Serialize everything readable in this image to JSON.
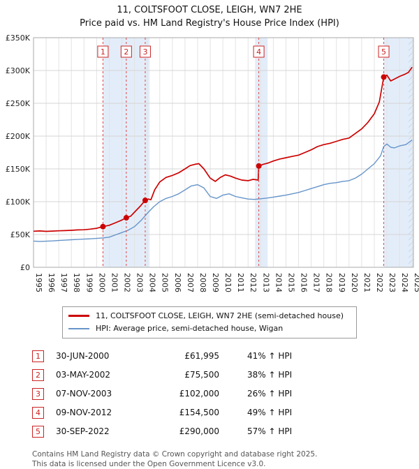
{
  "title": {
    "line1": "11, COLTSFOOT CLOSE, LEIGH, WN7 2HE",
    "line2": "Price paid vs. HM Land Registry's House Price Index (HPI)"
  },
  "chart_data": {
    "type": "line",
    "x_axis": {
      "range": [
        1995,
        2025.1
      ],
      "ticks": [
        1995,
        1996,
        1997,
        1998,
        1999,
        2000,
        2001,
        2002,
        2003,
        2004,
        2005,
        2006,
        2007,
        2008,
        2009,
        2010,
        2011,
        2012,
        2013,
        2014,
        2015,
        2016,
        2017,
        2018,
        2019,
        2020,
        2021,
        2022,
        2023,
        2024,
        2025
      ]
    },
    "y_axis": {
      "range_k": [
        0,
        350
      ],
      "ticks": [
        {
          "value": 0,
          "label": "£0"
        },
        {
          "value": 50,
          "label": "£50K"
        },
        {
          "value": 100,
          "label": "£100K"
        },
        {
          "value": 150,
          "label": "£150K"
        },
        {
          "value": 200,
          "label": "£200K"
        },
        {
          "value": 250,
          "label": "£250K"
        },
        {
          "value": 300,
          "label": "£300K"
        },
        {
          "value": 350,
          "label": "£350K"
        }
      ]
    },
    "colors": {
      "property": "#cc0000",
      "hpi": "#6694c9",
      "band": "#e3edf9",
      "grid": "#d4d4d4",
      "year_grid": "#e3e3e3",
      "sale_line": "#dd4444",
      "marker_box": "#cc2222",
      "border": "#aaaaaa"
    },
    "bands": [
      [
        2000.5,
        2004.2
      ],
      [
        2012.55,
        2013.55
      ],
      [
        2022.75,
        2025.1
      ]
    ],
    "hatch_band": [
      2024.72,
      2025.1
    ],
    "series": [
      {
        "name": "11, COLTSFOOT CLOSE, LEIGH, WN7 2HE (semi-detached house)",
        "color": "#cc0000",
        "points": [
          [
            1995,
            55
          ],
          [
            1995.5,
            55.4
          ],
          [
            1996,
            54.8
          ],
          [
            1996.5,
            55.2
          ],
          [
            1997,
            55.6
          ],
          [
            1997.5,
            56
          ],
          [
            1998,
            56.4
          ],
          [
            1998.5,
            57
          ],
          [
            1999,
            57.2
          ],
          [
            1999.5,
            58.2
          ],
          [
            2000,
            59.5
          ],
          [
            2000.5,
            61.995
          ],
          [
            2001,
            64
          ],
          [
            2001.5,
            68
          ],
          [
            2002,
            72
          ],
          [
            2002.35,
            75.5
          ],
          [
            2002.7,
            78
          ],
          [
            2003,
            84
          ],
          [
            2003.5,
            94
          ],
          [
            2003.85,
            102
          ],
          [
            2004.1,
            104
          ],
          [
            2004.3,
            103
          ],
          [
            2004.6,
            118
          ],
          [
            2005,
            130
          ],
          [
            2005.5,
            137
          ],
          [
            2006,
            140
          ],
          [
            2006.5,
            144
          ],
          [
            2007,
            150
          ],
          [
            2007.4,
            155
          ],
          [
            2007.8,
            157
          ],
          [
            2008.1,
            158
          ],
          [
            2008.5,
            150
          ],
          [
            2009,
            136
          ],
          [
            2009.4,
            131
          ],
          [
            2009.8,
            137
          ],
          [
            2010.2,
            141
          ],
          [
            2010.6,
            139
          ],
          [
            2011,
            136
          ],
          [
            2011.5,
            133
          ],
          [
            2012,
            132
          ],
          [
            2012.4,
            134
          ],
          [
            2012.8,
            133
          ],
          [
            2012.85,
            154.5
          ],
          [
            2013.2,
            157
          ],
          [
            2013.6,
            159
          ],
          [
            2014,
            162
          ],
          [
            2014.5,
            165
          ],
          [
            2015,
            167
          ],
          [
            2015.5,
            169
          ],
          [
            2016,
            171
          ],
          [
            2016.5,
            175
          ],
          [
            2017,
            179
          ],
          [
            2017.5,
            184
          ],
          [
            2018,
            187
          ],
          [
            2018.5,
            189
          ],
          [
            2019,
            192
          ],
          [
            2019.5,
            195
          ],
          [
            2020,
            197
          ],
          [
            2020.5,
            204
          ],
          [
            2021,
            211
          ],
          [
            2021.5,
            221
          ],
          [
            2022,
            234
          ],
          [
            2022.4,
            252
          ],
          [
            2022.75,
            290
          ],
          [
            2023,
            293
          ],
          [
            2023.3,
            284
          ],
          [
            2023.6,
            287
          ],
          [
            2024,
            291
          ],
          [
            2024.4,
            294
          ],
          [
            2024.7,
            297
          ],
          [
            2025,
            305
          ]
        ]
      },
      {
        "name": "HPI: Average price, semi-detached house, Wigan",
        "color": "#6694c9",
        "points": [
          [
            1995,
            40
          ],
          [
            1995.5,
            39.5
          ],
          [
            1996,
            39.8
          ],
          [
            1996.5,
            40.2
          ],
          [
            1997,
            40.8
          ],
          [
            1997.5,
            41.4
          ],
          [
            1998,
            42
          ],
          [
            1998.5,
            42.4
          ],
          [
            1999,
            43
          ],
          [
            1999.5,
            43.4
          ],
          [
            2000,
            44
          ],
          [
            2000.5,
            44.8
          ],
          [
            2001,
            46
          ],
          [
            2001.5,
            49.5
          ],
          [
            2002,
            53
          ],
          [
            2002.5,
            56.5
          ],
          [
            2003,
            62
          ],
          [
            2003.5,
            71
          ],
          [
            2004,
            82
          ],
          [
            2004.5,
            92
          ],
          [
            2005,
            100
          ],
          [
            2005.5,
            105
          ],
          [
            2006,
            108
          ],
          [
            2006.5,
            112
          ],
          [
            2007,
            118
          ],
          [
            2007.5,
            124
          ],
          [
            2008,
            126
          ],
          [
            2008.5,
            121
          ],
          [
            2009,
            108
          ],
          [
            2009.5,
            105
          ],
          [
            2010,
            110
          ],
          [
            2010.5,
            112
          ],
          [
            2011,
            108
          ],
          [
            2011.5,
            106
          ],
          [
            2012,
            104
          ],
          [
            2012.5,
            103.5
          ],
          [
            2013,
            104.5
          ],
          [
            2013.5,
            105.5
          ],
          [
            2014,
            107
          ],
          [
            2014.5,
            108.5
          ],
          [
            2015,
            110
          ],
          [
            2015.5,
            112
          ],
          [
            2016,
            114
          ],
          [
            2016.5,
            117
          ],
          [
            2017,
            120
          ],
          [
            2017.5,
            123
          ],
          [
            2018,
            126
          ],
          [
            2018.5,
            128
          ],
          [
            2019,
            129
          ],
          [
            2019.5,
            131
          ],
          [
            2020,
            132
          ],
          [
            2020.5,
            136
          ],
          [
            2021,
            142
          ],
          [
            2021.5,
            150
          ],
          [
            2022,
            158
          ],
          [
            2022.5,
            170
          ],
          [
            2022.75,
            184
          ],
          [
            2023,
            188
          ],
          [
            2023.3,
            183
          ],
          [
            2023.6,
            182
          ],
          [
            2024,
            185
          ],
          [
            2024.5,
            187
          ],
          [
            2025,
            194
          ]
        ]
      }
    ],
    "sales": [
      {
        "n": "1",
        "x": 2000.5,
        "price_k": 61.995,
        "date": "30-JUN-2000",
        "price": "£61,995",
        "hpi": "41% ↑ HPI"
      },
      {
        "n": "2",
        "x": 2002.35,
        "price_k": 75.5,
        "date": "03-MAY-2002",
        "price": "£75,500",
        "hpi": "38% ↑ HPI"
      },
      {
        "n": "3",
        "x": 2003.85,
        "price_k": 102,
        "date": "07-NOV-2003",
        "price": "£102,000",
        "hpi": "26% ↑ HPI"
      },
      {
        "n": "4",
        "x": 2012.85,
        "price_k": 154.5,
        "date": "09-NOV-2012",
        "price": "£154,500",
        "hpi": "49% ↑ HPI"
      },
      {
        "n": "5",
        "x": 2022.75,
        "price_k": 290,
        "date": "30-SEP-2022",
        "price": "£290,000",
        "hpi": "57% ↑ HPI"
      }
    ]
  },
  "legend": {
    "items": [
      {
        "label": "11, COLTSFOOT CLOSE, LEIGH, WN7 2HE (semi-detached house)",
        "color": "#cc0000"
      },
      {
        "label": "HPI: Average price, semi-detached house, Wigan",
        "color": "#6694c9"
      }
    ]
  },
  "footer": {
    "line1": "Contains HM Land Registry data © Crown copyright and database right 2025.",
    "line2": "This data is licensed under the Open Government Licence v3.0."
  }
}
